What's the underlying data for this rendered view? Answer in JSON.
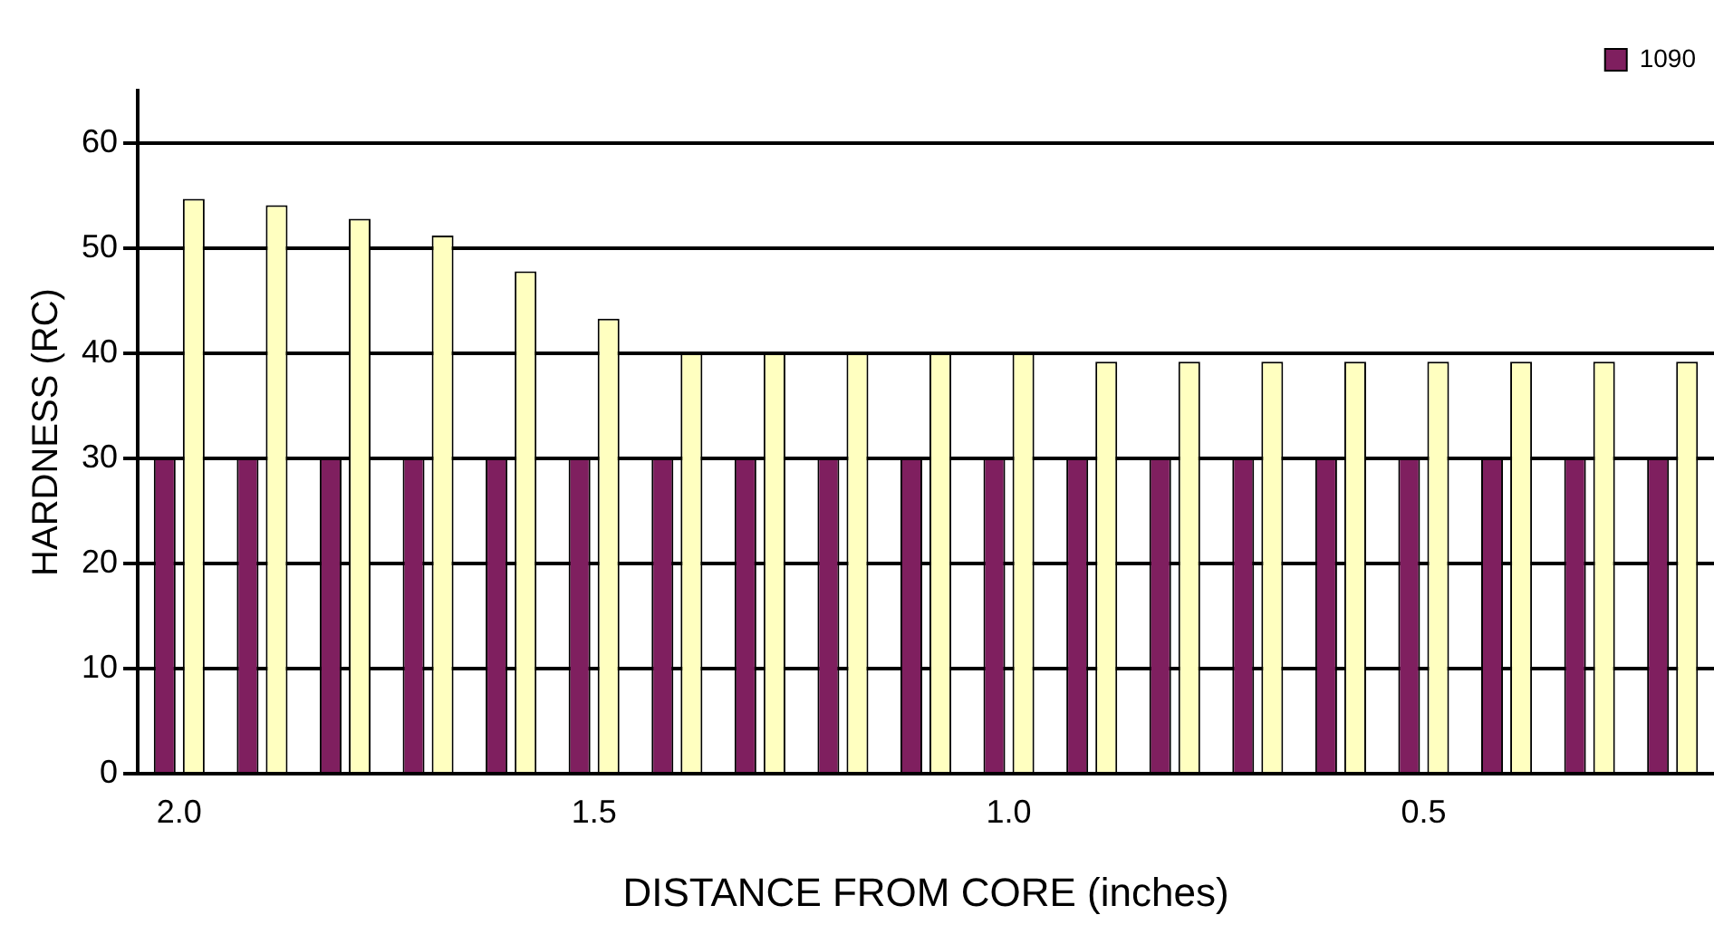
{
  "chart_data": {
    "type": "bar",
    "xlabel": "DISTANCE FROM CORE (inches)",
    "ylabel": "HARDNESS (RC)",
    "categories": [
      "2.0",
      null,
      null,
      null,
      null,
      "1.5",
      null,
      null,
      null,
      null,
      "1.0",
      null,
      null,
      null,
      null,
      "0.5",
      null,
      null,
      null
    ],
    "series": [
      {
        "name": "1090",
        "color": "#7f1f5f",
        "values": [
          30,
          30,
          30,
          30,
          30,
          30,
          30,
          30,
          30,
          30,
          30,
          30,
          30,
          30,
          30,
          30,
          30,
          30,
          30
        ]
      },
      {
        "color": "#ffffc0",
        "values": [
          54.7,
          54.1,
          52.8,
          51.2,
          47.8,
          43.3,
          40,
          40,
          40,
          40,
          40,
          39.2,
          39.2,
          39.2,
          39.2,
          39.2,
          39.2,
          39.2,
          39.2
        ]
      }
    ],
    "ylim": [
      0,
      65
    ],
    "yticks": [
      0,
      10,
      20,
      30,
      40,
      50,
      60
    ],
    "grid": "y",
    "legend": "top right"
  }
}
